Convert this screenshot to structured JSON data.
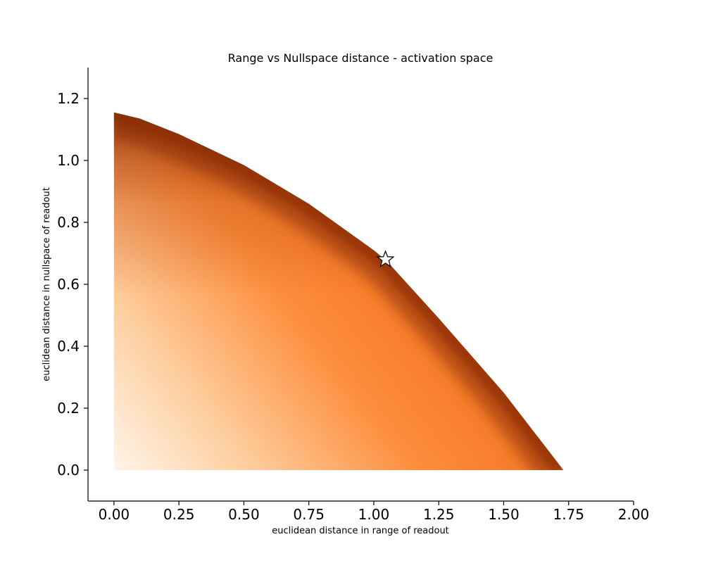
{
  "chart_data": {
    "type": "area",
    "title": "Range vs Nullspace distance - activation space",
    "xlabel": "euclidean distance in range of readout",
    "ylabel": "euclidean distance in nullspace of readout",
    "xlim": [
      -0.1,
      2.0
    ],
    "ylim": [
      -0.1,
      1.3
    ],
    "xticks": [
      "0.00",
      "0.25",
      "0.50",
      "0.75",
      "1.00",
      "1.25",
      "1.50",
      "1.75",
      "2.00"
    ],
    "yticks": [
      "0.0",
      "0.2",
      "0.4",
      "0.6",
      "0.8",
      "1.0",
      "1.2"
    ],
    "grid": false,
    "colormap": "Oranges",
    "colors": {
      "light": "#fff5eb",
      "mid": "#fd8d3c",
      "dark": "#7f2704",
      "marker_fill": "#ffffff",
      "marker_edge": "#000000"
    },
    "region_boundary": {
      "x": [
        0.0,
        0.1,
        0.25,
        0.5,
        0.75,
        1.0,
        1.05,
        1.25,
        1.5,
        1.73
      ],
      "y": [
        1.155,
        1.135,
        1.085,
        0.985,
        0.86,
        0.71,
        0.675,
        0.49,
        0.25,
        0.0
      ]
    },
    "marker": {
      "shape": "star",
      "x": 1.045,
      "y": 0.68
    }
  }
}
